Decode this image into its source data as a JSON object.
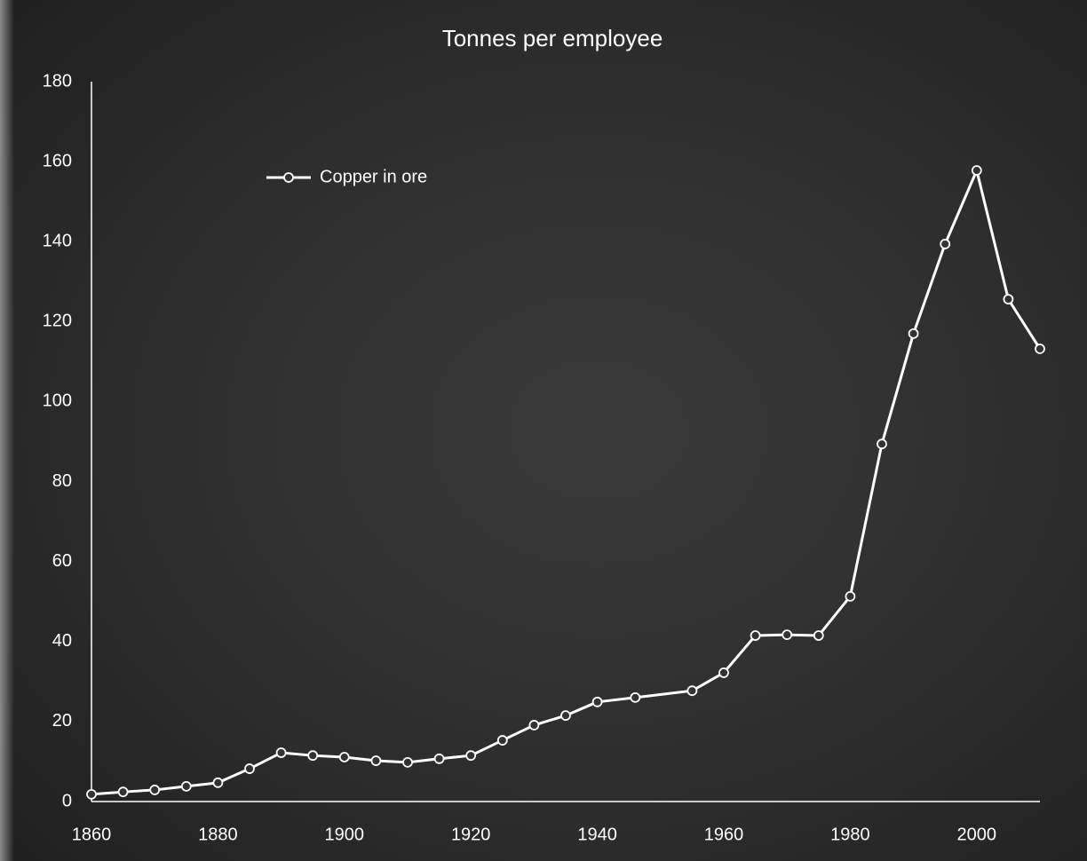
{
  "chart_data": {
    "type": "line",
    "title": "Tonnes per employee",
    "x": [
      1860,
      1865,
      1870,
      1875,
      1880,
      1885,
      1890,
      1895,
      1900,
      1905,
      1910,
      1915,
      1920,
      1925,
      1930,
      1935,
      1940,
      1946,
      1955,
      1960,
      1965,
      1970,
      1975,
      1980,
      1985,
      1990,
      1995,
      2000,
      2005,
      2010
    ],
    "series": [
      {
        "name": "Copper in ore",
        "color": "#ffffff",
        "values": [
          1.8,
          2.4,
          2.9,
          3.8,
          4.7,
          8.2,
          12.2,
          11.5,
          11.1,
          10.2,
          9.8,
          10.7,
          11.5,
          15.3,
          19.1,
          21.5,
          24.9,
          26,
          27.7,
          32.2,
          41.5,
          41.7,
          41.5,
          51.3,
          89.4,
          117,
          139.4,
          157.8,
          125.6,
          113.2
        ]
      }
    ],
    "xlim": [
      1860,
      2010
    ],
    "xticks": [
      1860,
      1880,
      1900,
      1920,
      1940,
      1960,
      1980,
      2000
    ],
    "ylim": [
      0,
      180
    ],
    "yticks": [
      0,
      20,
      40,
      60,
      80,
      100,
      120,
      140,
      160,
      180
    ],
    "grid": false,
    "legend": "upper left"
  }
}
